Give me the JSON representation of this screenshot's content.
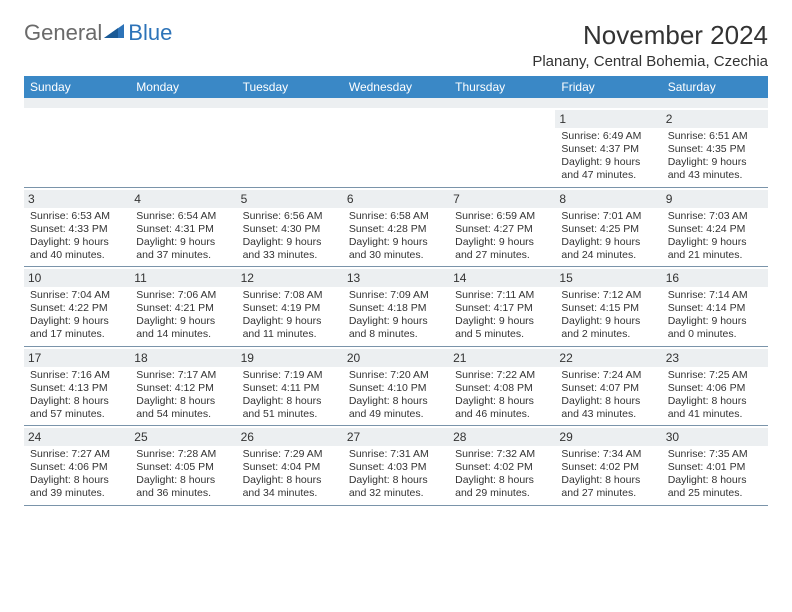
{
  "logo": {
    "text1": "General",
    "text2": "Blue"
  },
  "title": "November 2024",
  "location": "Planany, Central Bohemia, Czechia",
  "colors": {
    "header_bg": "#3a88c6",
    "daynum_bg": "#eceff1",
    "border": "#7a94aa",
    "text": "#333333",
    "logo_gray": "#6a6a6a",
    "logo_blue": "#2d73b8",
    "background": "#ffffff"
  },
  "day_names": [
    "Sunday",
    "Monday",
    "Tuesday",
    "Wednesday",
    "Thursday",
    "Friday",
    "Saturday"
  ],
  "weeks": [
    [
      {
        "n": "",
        "sunrise": "",
        "sunset": "",
        "daylight1": "",
        "daylight2": ""
      },
      {
        "n": "",
        "sunrise": "",
        "sunset": "",
        "daylight1": "",
        "daylight2": ""
      },
      {
        "n": "",
        "sunrise": "",
        "sunset": "",
        "daylight1": "",
        "daylight2": ""
      },
      {
        "n": "",
        "sunrise": "",
        "sunset": "",
        "daylight1": "",
        "daylight2": ""
      },
      {
        "n": "",
        "sunrise": "",
        "sunset": "",
        "daylight1": "",
        "daylight2": ""
      },
      {
        "n": "1",
        "sunrise": "Sunrise: 6:49 AM",
        "sunset": "Sunset: 4:37 PM",
        "daylight1": "Daylight: 9 hours",
        "daylight2": "and 47 minutes."
      },
      {
        "n": "2",
        "sunrise": "Sunrise: 6:51 AM",
        "sunset": "Sunset: 4:35 PM",
        "daylight1": "Daylight: 9 hours",
        "daylight2": "and 43 minutes."
      }
    ],
    [
      {
        "n": "3",
        "sunrise": "Sunrise: 6:53 AM",
        "sunset": "Sunset: 4:33 PM",
        "daylight1": "Daylight: 9 hours",
        "daylight2": "and 40 minutes."
      },
      {
        "n": "4",
        "sunrise": "Sunrise: 6:54 AM",
        "sunset": "Sunset: 4:31 PM",
        "daylight1": "Daylight: 9 hours",
        "daylight2": "and 37 minutes."
      },
      {
        "n": "5",
        "sunrise": "Sunrise: 6:56 AM",
        "sunset": "Sunset: 4:30 PM",
        "daylight1": "Daylight: 9 hours",
        "daylight2": "and 33 minutes."
      },
      {
        "n": "6",
        "sunrise": "Sunrise: 6:58 AM",
        "sunset": "Sunset: 4:28 PM",
        "daylight1": "Daylight: 9 hours",
        "daylight2": "and 30 minutes."
      },
      {
        "n": "7",
        "sunrise": "Sunrise: 6:59 AM",
        "sunset": "Sunset: 4:27 PM",
        "daylight1": "Daylight: 9 hours",
        "daylight2": "and 27 minutes."
      },
      {
        "n": "8",
        "sunrise": "Sunrise: 7:01 AM",
        "sunset": "Sunset: 4:25 PM",
        "daylight1": "Daylight: 9 hours",
        "daylight2": "and 24 minutes."
      },
      {
        "n": "9",
        "sunrise": "Sunrise: 7:03 AM",
        "sunset": "Sunset: 4:24 PM",
        "daylight1": "Daylight: 9 hours",
        "daylight2": "and 21 minutes."
      }
    ],
    [
      {
        "n": "10",
        "sunrise": "Sunrise: 7:04 AM",
        "sunset": "Sunset: 4:22 PM",
        "daylight1": "Daylight: 9 hours",
        "daylight2": "and 17 minutes."
      },
      {
        "n": "11",
        "sunrise": "Sunrise: 7:06 AM",
        "sunset": "Sunset: 4:21 PM",
        "daylight1": "Daylight: 9 hours",
        "daylight2": "and 14 minutes."
      },
      {
        "n": "12",
        "sunrise": "Sunrise: 7:08 AM",
        "sunset": "Sunset: 4:19 PM",
        "daylight1": "Daylight: 9 hours",
        "daylight2": "and 11 minutes."
      },
      {
        "n": "13",
        "sunrise": "Sunrise: 7:09 AM",
        "sunset": "Sunset: 4:18 PM",
        "daylight1": "Daylight: 9 hours",
        "daylight2": "and 8 minutes."
      },
      {
        "n": "14",
        "sunrise": "Sunrise: 7:11 AM",
        "sunset": "Sunset: 4:17 PM",
        "daylight1": "Daylight: 9 hours",
        "daylight2": "and 5 minutes."
      },
      {
        "n": "15",
        "sunrise": "Sunrise: 7:12 AM",
        "sunset": "Sunset: 4:15 PM",
        "daylight1": "Daylight: 9 hours",
        "daylight2": "and 2 minutes."
      },
      {
        "n": "16",
        "sunrise": "Sunrise: 7:14 AM",
        "sunset": "Sunset: 4:14 PM",
        "daylight1": "Daylight: 9 hours",
        "daylight2": "and 0 minutes."
      }
    ],
    [
      {
        "n": "17",
        "sunrise": "Sunrise: 7:16 AM",
        "sunset": "Sunset: 4:13 PM",
        "daylight1": "Daylight: 8 hours",
        "daylight2": "and 57 minutes."
      },
      {
        "n": "18",
        "sunrise": "Sunrise: 7:17 AM",
        "sunset": "Sunset: 4:12 PM",
        "daylight1": "Daylight: 8 hours",
        "daylight2": "and 54 minutes."
      },
      {
        "n": "19",
        "sunrise": "Sunrise: 7:19 AM",
        "sunset": "Sunset: 4:11 PM",
        "daylight1": "Daylight: 8 hours",
        "daylight2": "and 51 minutes."
      },
      {
        "n": "20",
        "sunrise": "Sunrise: 7:20 AM",
        "sunset": "Sunset: 4:10 PM",
        "daylight1": "Daylight: 8 hours",
        "daylight2": "and 49 minutes."
      },
      {
        "n": "21",
        "sunrise": "Sunrise: 7:22 AM",
        "sunset": "Sunset: 4:08 PM",
        "daylight1": "Daylight: 8 hours",
        "daylight2": "and 46 minutes."
      },
      {
        "n": "22",
        "sunrise": "Sunrise: 7:24 AM",
        "sunset": "Sunset: 4:07 PM",
        "daylight1": "Daylight: 8 hours",
        "daylight2": "and 43 minutes."
      },
      {
        "n": "23",
        "sunrise": "Sunrise: 7:25 AM",
        "sunset": "Sunset: 4:06 PM",
        "daylight1": "Daylight: 8 hours",
        "daylight2": "and 41 minutes."
      }
    ],
    [
      {
        "n": "24",
        "sunrise": "Sunrise: 7:27 AM",
        "sunset": "Sunset: 4:06 PM",
        "daylight1": "Daylight: 8 hours",
        "daylight2": "and 39 minutes."
      },
      {
        "n": "25",
        "sunrise": "Sunrise: 7:28 AM",
        "sunset": "Sunset: 4:05 PM",
        "daylight1": "Daylight: 8 hours",
        "daylight2": "and 36 minutes."
      },
      {
        "n": "26",
        "sunrise": "Sunrise: 7:29 AM",
        "sunset": "Sunset: 4:04 PM",
        "daylight1": "Daylight: 8 hours",
        "daylight2": "and 34 minutes."
      },
      {
        "n": "27",
        "sunrise": "Sunrise: 7:31 AM",
        "sunset": "Sunset: 4:03 PM",
        "daylight1": "Daylight: 8 hours",
        "daylight2": "and 32 minutes."
      },
      {
        "n": "28",
        "sunrise": "Sunrise: 7:32 AM",
        "sunset": "Sunset: 4:02 PM",
        "daylight1": "Daylight: 8 hours",
        "daylight2": "and 29 minutes."
      },
      {
        "n": "29",
        "sunrise": "Sunrise: 7:34 AM",
        "sunset": "Sunset: 4:02 PM",
        "daylight1": "Daylight: 8 hours",
        "daylight2": "and 27 minutes."
      },
      {
        "n": "30",
        "sunrise": "Sunrise: 7:35 AM",
        "sunset": "Sunset: 4:01 PM",
        "daylight1": "Daylight: 8 hours",
        "daylight2": "and 25 minutes."
      }
    ]
  ]
}
